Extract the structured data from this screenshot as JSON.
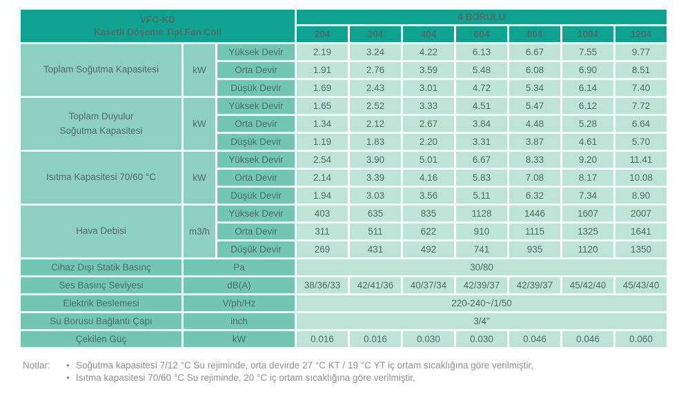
{
  "header": {
    "model": "VFC-KD",
    "subtitle": "Kasetli Döşeme Tipi Fan Coil",
    "group": "4 BORULU",
    "columns": [
      "204",
      "304",
      "404",
      "604",
      "804",
      "1004",
      "1204"
    ]
  },
  "speed_labels": [
    "Yüksek Devir",
    "Orta Devir",
    "Düşük Devir"
  ],
  "sections": [
    {
      "label": "Toplam Soğutma Kapasitesi",
      "label2": "",
      "unit": "kW",
      "rows": [
        [
          "2.19",
          "3.24",
          "4.22",
          "6.13",
          "6.67",
          "7.55",
          "9.77"
        ],
        [
          "1.91",
          "2.76",
          "3.59",
          "5.48",
          "6.08",
          "6.90",
          "8.51"
        ],
        [
          "1.69",
          "2.43",
          "3.01",
          "4.72",
          "5.34",
          "6.14",
          "7.40"
        ]
      ]
    },
    {
      "label": "Toplam Duyulur",
      "label2": "Soğutma Kapasitesi",
      "unit": "kW",
      "rows": [
        [
          "1.65",
          "2.52",
          "3.33",
          "4.51",
          "5.47",
          "6.12",
          "7.72"
        ],
        [
          "1.34",
          "2.12",
          "2.67",
          "3.84",
          "4.48",
          "5.28",
          "6.64"
        ],
        [
          "1.19",
          "1.83",
          "2.20",
          "3.31",
          "3.87",
          "4.61",
          "5.70"
        ]
      ]
    },
    {
      "label": "Isıtma Kapasitesi  70/60 °C",
      "label2": "",
      "unit": "kW",
      "rows": [
        [
          "2.54",
          "3.90",
          "5.01",
          "6.67",
          "8.33",
          "9.20",
          "11.41"
        ],
        [
          "2.14",
          "3.39",
          "4.16",
          "5.83",
          "7.08",
          "8.17",
          "10.08"
        ],
        [
          "1.94",
          "3.03",
          "3.56",
          "5.11",
          "6.32",
          "7.34",
          "8.90"
        ]
      ]
    },
    {
      "label": "Hava Debisi",
      "label2": "",
      "unit": "m3/h",
      "rows": [
        [
          "403",
          "635",
          "835",
          "1128",
          "1446",
          "1607",
          "2007"
        ],
        [
          "311",
          "511",
          "622",
          "910",
          "1115",
          "1325",
          "1641"
        ],
        [
          "269",
          "431",
          "492",
          "741",
          "935",
          "1120",
          "1350"
        ]
      ]
    }
  ],
  "single_rows": [
    {
      "label": "Cihaz Dışı Statik Basınç",
      "unit": "Pa",
      "span": "30/80"
    },
    {
      "label": "Ses Basınç Seviyesi",
      "unit": "dB(A)",
      "values": [
        "38/36/33",
        "42/41/36",
        "40/37/34",
        "42/39/37",
        "42/39/37",
        "45/42/40",
        "45/43/40"
      ]
    },
    {
      "label": "Elektrik Beslemesi",
      "unit": "V/ph/Hz",
      "span": "220-240~/1/50"
    },
    {
      "label": "Su Borusu Bağlantı Çapı",
      "unit": "inch",
      "span": "3/4\""
    },
    {
      "label": "Çekilen Güç",
      "unit": "kW",
      "values": [
        "0.016",
        "0.016",
        "0.030",
        "0.030",
        "0.046",
        "0.046",
        "0.060"
      ]
    }
  ],
  "notes": {
    "label": "Notlar:",
    "items": [
      "Soğutma kapasitesi 7/12 °C Su rejiminde, orta devirde 27 °C KT / 19 °C YT iç ortam sıcaklığına göre verilmiştir,",
      "Isıtma kapasitesi 70/60 °C Su rejiminde, 20 °C iç ortam sıcaklığına göre verilmiştir,"
    ]
  },
  "colors": {
    "header_teal": "#10a291",
    "label_cell": "#8ed0c0",
    "speed_cell": "#72c6b2",
    "value_cell": "#bee3d7",
    "cell_text": "#4d6e67",
    "header_text": "#ffffff",
    "notes_text": "#8e8f8e"
  }
}
